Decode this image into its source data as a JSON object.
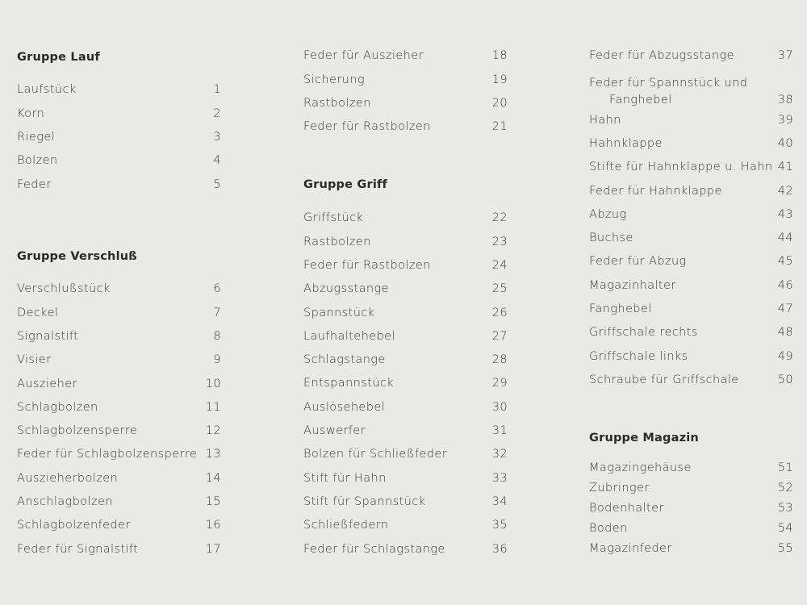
{
  "columns": [
    {
      "sections": [
        {
          "header": "Gruppe Lauf",
          "items": [
            {
              "label": "Laufstück",
              "num": "1"
            },
            {
              "label": "Korn",
              "num": "2"
            },
            {
              "label": "Riegel",
              "num": "3"
            },
            {
              "label": "Bolzen",
              "num": "4"
            },
            {
              "label": "Feder",
              "num": "5"
            }
          ]
        },
        {
          "header": "Gruppe Verschluß",
          "items": [
            {
              "label": "Verschlußstück",
              "num": "6"
            },
            {
              "label": "Deckel",
              "num": "7"
            },
            {
              "label": "Signalstift",
              "num": "8"
            },
            {
              "label": "Visier",
              "num": "9"
            },
            {
              "label": "Auszieher",
              "num": "10"
            },
            {
              "label": "Schlagbolzen",
              "num": "11"
            },
            {
              "label": "Schlagbolzensperre",
              "num": "12"
            },
            {
              "label": "Feder für Schlagbolzensperre",
              "num": "13"
            },
            {
              "label": "Auszieherbolzen",
              "num": "14"
            },
            {
              "label": "Anschlagbolzen",
              "num": "15"
            },
            {
              "label": "Schlagbolzenfeder",
              "num": "16"
            },
            {
              "label": "Feder für Signalstift",
              "num": "17"
            }
          ]
        }
      ]
    },
    {
      "sections": [
        {
          "header": "",
          "items": [
            {
              "label": "Feder für Auszieher",
              "num": "18"
            },
            {
              "label": "Sicherung",
              "num": "19"
            },
            {
              "label": "Rastbolzen",
              "num": "20"
            },
            {
              "label": "Feder für Rastbolzen",
              "num": "21"
            }
          ]
        },
        {
          "header": "Gruppe Griff",
          "items": [
            {
              "label": "Griffstück",
              "num": "22"
            },
            {
              "label": "Rastbolzen",
              "num": "23"
            },
            {
              "label": "Feder für Rastbolzen",
              "num": "24"
            },
            {
              "label": "Abzugsstange",
              "num": "25"
            },
            {
              "label": "Spannstück",
              "num": "26"
            },
            {
              "label": "Laufhaltehebel",
              "num": "27"
            },
            {
              "label": "Schlagstange",
              "num": "28"
            },
            {
              "label": "Entspannstück",
              "num": "29"
            },
            {
              "label": "Auslösehebel",
              "num": "30"
            },
            {
              "label": "Auswerfer",
              "num": "31"
            },
            {
              "label": "Bolzen für Schließfeder",
              "num": "32"
            },
            {
              "label": "Stift für Hahn",
              "num": "33"
            },
            {
              "label": "Stift für Spannstück",
              "num": "34"
            },
            {
              "label": "Schließfedern",
              "num": "35"
            },
            {
              "label": "Feder für Schlagstange",
              "num": "36"
            }
          ]
        }
      ]
    },
    {
      "sections": [
        {
          "header": "",
          "items": [
            {
              "label": "Feder für Abzugsstange",
              "num": "37"
            },
            {
              "label": "Feder für Spannstück und",
              "label2": "Fanghebel",
              "num": "38"
            },
            {
              "label": "Hahn",
              "num": "39"
            },
            {
              "label": "Hahnklappe",
              "num": "40"
            },
            {
              "label": "Stifte für Hahnklappe u. Hahn",
              "num": "41"
            },
            {
              "label": "Feder für Hahnklappe",
              "num": "42"
            },
            {
              "label": "Abzug",
              "num": "43"
            },
            {
              "label": "Buchse",
              "num": "44"
            },
            {
              "label": "Feder für Abzug",
              "num": "45"
            },
            {
              "label": "Magazinhalter",
              "num": "46"
            },
            {
              "label": "Fanghebel",
              "num": "47"
            },
            {
              "label": "Griffschale rechts",
              "num": "48"
            },
            {
              "label": "Griffschale links",
              "num": "49"
            },
            {
              "label": "Schraube für Griffschale",
              "num": "50"
            }
          ]
        },
        {
          "header": "Gruppe Magazin",
          "items": [
            {
              "label": "Magazingehäuse",
              "num": "51"
            },
            {
              "label": "Zubringer",
              "num": "52"
            },
            {
              "label": "Bodenhalter",
              "num": "53"
            },
            {
              "label": "Boden",
              "num": "54"
            },
            {
              "label": "Magazinfeder",
              "num": "55"
            }
          ]
        }
      ]
    }
  ],
  "colors": {
    "background": "#e9e9e8",
    "text": "#3a3a3a"
  }
}
